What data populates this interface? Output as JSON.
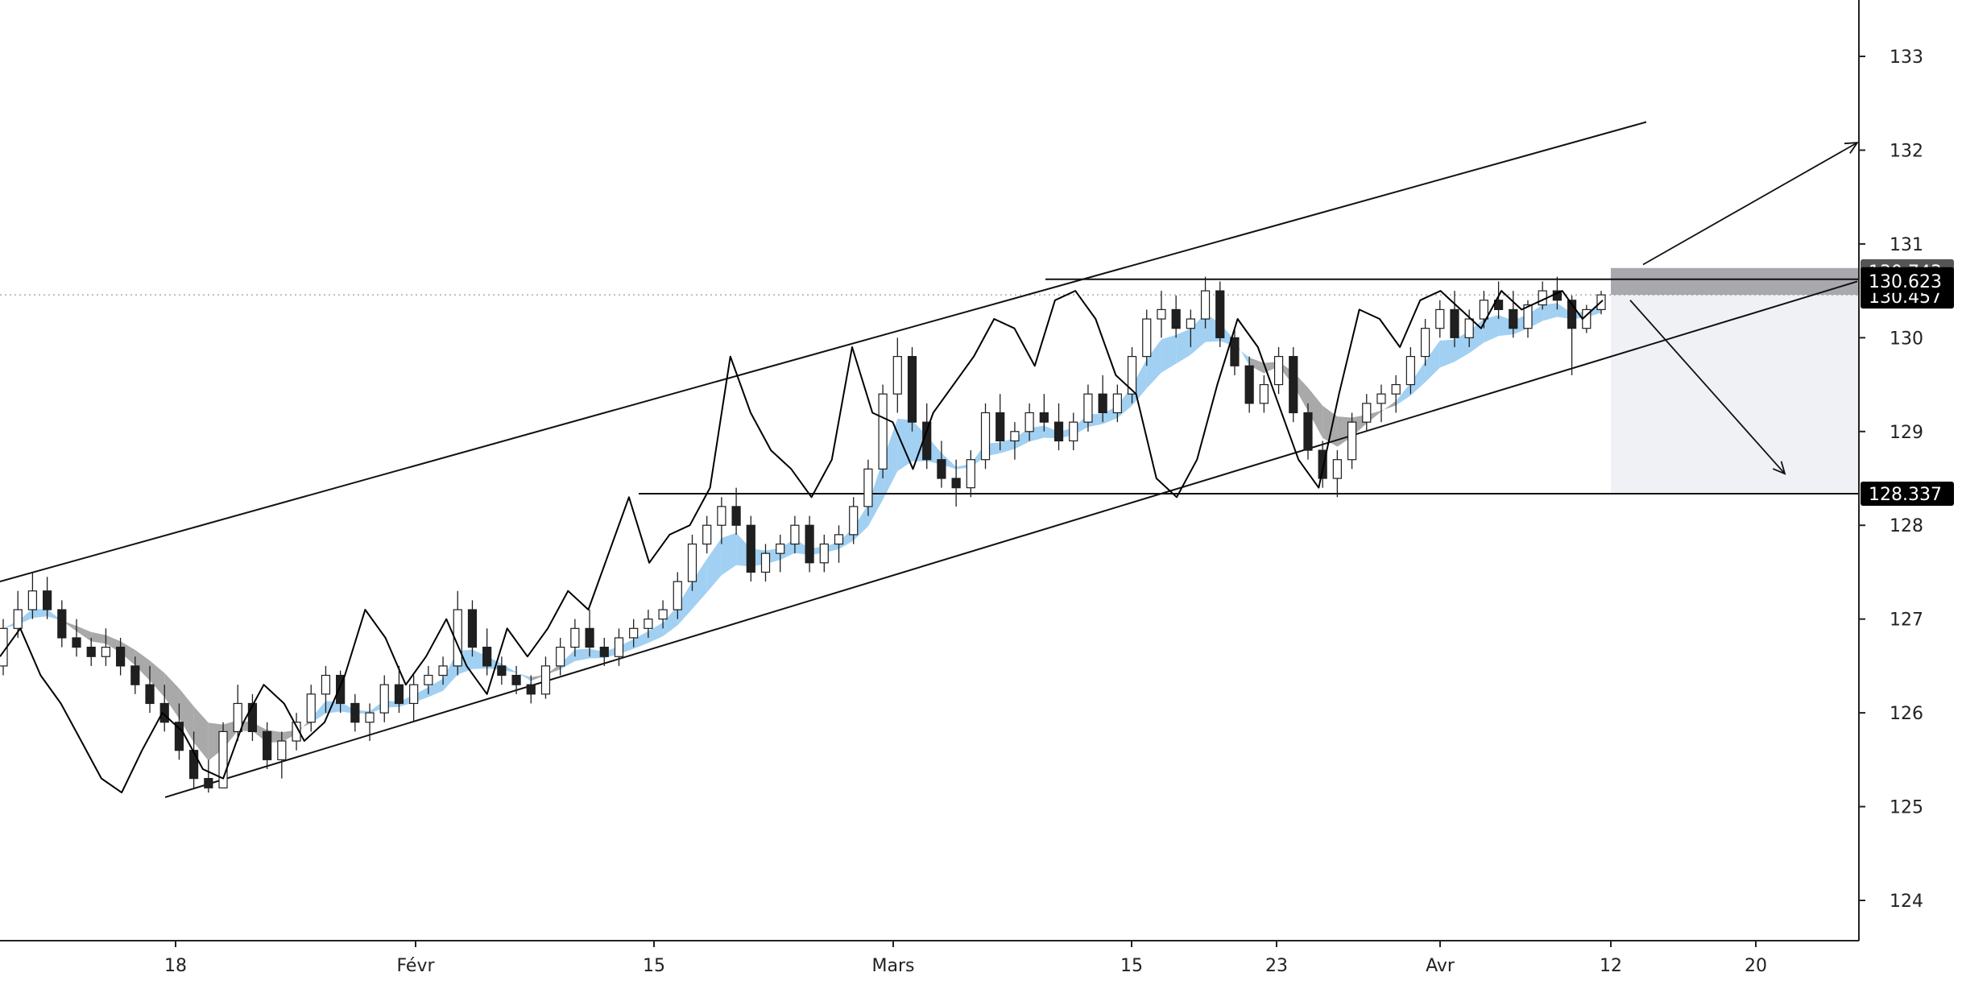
{
  "chart_data": {
    "type": "candlestick",
    "x_axis": {
      "type": "time",
      "tick_labels": [
        "18",
        "Févr",
        "15",
        "Mars",
        "15",
        "23",
        "Avr",
        "12",
        "20"
      ]
    },
    "y_axis": {
      "position": "right",
      "range": [
        123.6,
        133.6
      ],
      "ticks": [
        124,
        125,
        126,
        127,
        128,
        129,
        130,
        131,
        132,
        133
      ]
    },
    "price_labels": [
      {
        "value": 130.743,
        "text": "130.743",
        "style": "dark-gray"
      },
      {
        "value": 130.623,
        "text": "130.623",
        "style": "black"
      },
      {
        "value": 130.457,
        "text": "130.457",
        "style": "black"
      },
      {
        "value": 128.337,
        "text": "128.337",
        "style": "black"
      }
    ],
    "current_price": 130.457,
    "colors": {
      "candle": "#1f1f1f",
      "baseline_fill": "#90c8f0",
      "baseline_fill_dark": "#8c8c8c",
      "trade_zone_stop": "#a9a9ad",
      "trade_zone_target": "#eceef2"
    },
    "series": [
      {
        "kind": "candles",
        "ohlc": [
          [
            126.5,
            127.0,
            126.4,
            126.9
          ],
          [
            126.9,
            127.3,
            126.8,
            127.1
          ],
          [
            127.1,
            127.5,
            127.0,
            127.3
          ],
          [
            127.3,
            127.45,
            127.0,
            127.1
          ],
          [
            127.1,
            127.2,
            126.7,
            126.8
          ],
          [
            126.8,
            127.0,
            126.6,
            126.7
          ],
          [
            126.7,
            126.8,
            126.5,
            126.6
          ],
          [
            126.6,
            126.9,
            126.5,
            126.7
          ],
          [
            126.7,
            126.8,
            126.4,
            126.5
          ],
          [
            126.5,
            126.6,
            126.2,
            126.3
          ],
          [
            126.3,
            126.5,
            126.0,
            126.1
          ],
          [
            126.1,
            126.3,
            125.8,
            125.9
          ],
          [
            125.9,
            126.1,
            125.5,
            125.6
          ],
          [
            125.6,
            125.8,
            125.2,
            125.3
          ],
          [
            125.3,
            125.5,
            125.15,
            125.2
          ],
          [
            125.2,
            125.9,
            125.2,
            125.8
          ],
          [
            125.8,
            126.3,
            125.7,
            126.1
          ],
          [
            126.1,
            126.2,
            125.7,
            125.8
          ],
          [
            125.8,
            125.9,
            125.4,
            125.5
          ],
          [
            125.5,
            125.8,
            125.3,
            125.7
          ],
          [
            125.7,
            126.0,
            125.6,
            125.9
          ],
          [
            125.9,
            126.3,
            125.8,
            126.2
          ],
          [
            126.2,
            126.5,
            126.0,
            126.4
          ],
          [
            126.4,
            126.45,
            126.0,
            126.1
          ],
          [
            126.1,
            126.2,
            125.8,
            125.9
          ],
          [
            125.9,
            126.1,
            125.7,
            126.0
          ],
          [
            126.0,
            126.4,
            125.9,
            126.3
          ],
          [
            126.3,
            126.5,
            126.0,
            126.1
          ],
          [
            126.1,
            126.4,
            125.9,
            126.3
          ],
          [
            126.3,
            126.5,
            126.2,
            126.4
          ],
          [
            126.4,
            126.6,
            126.3,
            126.5
          ],
          [
            126.5,
            127.3,
            126.4,
            127.1
          ],
          [
            127.1,
            127.2,
            126.6,
            126.7
          ],
          [
            126.7,
            126.9,
            126.4,
            126.5
          ],
          [
            126.5,
            126.6,
            126.3,
            126.4
          ],
          [
            126.4,
            126.5,
            126.2,
            126.3
          ],
          [
            126.3,
            126.4,
            126.1,
            126.2
          ],
          [
            126.2,
            126.6,
            126.15,
            126.5
          ],
          [
            126.5,
            126.8,
            126.4,
            126.7
          ],
          [
            126.7,
            127.0,
            126.6,
            126.9
          ],
          [
            126.9,
            127.1,
            126.6,
            126.7
          ],
          [
            126.7,
            126.8,
            126.5,
            126.6
          ],
          [
            126.6,
            126.9,
            126.5,
            126.8
          ],
          [
            126.8,
            127.0,
            126.7,
            126.9
          ],
          [
            126.9,
            127.1,
            126.8,
            127.0
          ],
          [
            127.0,
            127.2,
            126.9,
            127.1
          ],
          [
            127.1,
            127.5,
            127.0,
            127.4
          ],
          [
            127.4,
            127.9,
            127.3,
            127.8
          ],
          [
            127.8,
            128.1,
            127.7,
            128.0
          ],
          [
            128.0,
            128.3,
            127.8,
            128.2
          ],
          [
            128.2,
            128.4,
            127.9,
            128.0
          ],
          [
            128.0,
            128.1,
            127.4,
            127.5
          ],
          [
            127.5,
            127.8,
            127.4,
            127.7
          ],
          [
            127.7,
            127.9,
            127.5,
            127.8
          ],
          [
            127.8,
            128.1,
            127.7,
            128.0
          ],
          [
            128.0,
            128.1,
            127.5,
            127.6
          ],
          [
            127.6,
            127.9,
            127.5,
            127.8
          ],
          [
            127.8,
            128.0,
            127.6,
            127.9
          ],
          [
            127.9,
            128.3,
            127.8,
            128.2
          ],
          [
            128.2,
            128.7,
            128.1,
            128.6
          ],
          [
            128.6,
            129.5,
            128.5,
            129.4
          ],
          [
            129.4,
            130.0,
            129.2,
            129.8
          ],
          [
            129.8,
            129.9,
            129.0,
            129.1
          ],
          [
            129.1,
            129.3,
            128.6,
            128.7
          ],
          [
            128.7,
            128.9,
            128.4,
            128.5
          ],
          [
            128.5,
            128.7,
            128.2,
            128.4
          ],
          [
            128.4,
            128.8,
            128.3,
            128.7
          ],
          [
            128.7,
            129.3,
            128.6,
            129.2
          ],
          [
            129.2,
            129.4,
            128.8,
            128.9
          ],
          [
            128.9,
            129.1,
            128.7,
            129.0
          ],
          [
            129.0,
            129.3,
            128.9,
            129.2
          ],
          [
            129.2,
            129.4,
            129.0,
            129.1
          ],
          [
            129.1,
            129.3,
            128.8,
            128.9
          ],
          [
            128.9,
            129.2,
            128.8,
            129.1
          ],
          [
            129.1,
            129.5,
            129.0,
            129.4
          ],
          [
            129.4,
            129.6,
            129.1,
            129.2
          ],
          [
            129.2,
            129.5,
            129.1,
            129.4
          ],
          [
            129.4,
            129.9,
            129.3,
            129.8
          ],
          [
            129.8,
            130.3,
            129.7,
            130.2
          ],
          [
            130.2,
            130.5,
            130.0,
            130.3
          ],
          [
            130.3,
            130.45,
            130.0,
            130.1
          ],
          [
            130.1,
            130.3,
            129.9,
            130.2
          ],
          [
            130.2,
            130.65,
            130.1,
            130.5
          ],
          [
            130.5,
            130.6,
            129.9,
            130.0
          ],
          [
            130.0,
            130.1,
            129.6,
            129.7
          ],
          [
            129.7,
            129.8,
            129.2,
            129.3
          ],
          [
            129.3,
            129.6,
            129.2,
            129.5
          ],
          [
            129.5,
            129.9,
            129.4,
            129.8
          ],
          [
            129.8,
            129.9,
            129.1,
            129.2
          ],
          [
            129.2,
            129.3,
            128.7,
            128.8
          ],
          [
            128.8,
            128.9,
            128.4,
            128.5
          ],
          [
            128.5,
            128.8,
            128.3,
            128.7
          ],
          [
            128.7,
            129.2,
            128.6,
            129.1
          ],
          [
            129.1,
            129.4,
            129.0,
            129.3
          ],
          [
            129.3,
            129.5,
            129.1,
            129.4
          ],
          [
            129.4,
            129.6,
            129.2,
            129.5
          ],
          [
            129.5,
            129.9,
            129.4,
            129.8
          ],
          [
            129.8,
            130.2,
            129.7,
            130.1
          ],
          [
            130.1,
            130.4,
            130.0,
            130.3
          ],
          [
            130.3,
            130.5,
            129.9,
            130.0
          ],
          [
            130.0,
            130.3,
            129.9,
            130.2
          ],
          [
            130.2,
            130.5,
            130.1,
            130.4
          ],
          [
            130.4,
            130.6,
            130.2,
            130.3
          ],
          [
            130.3,
            130.5,
            130.0,
            130.1
          ],
          [
            130.1,
            130.4,
            130.0,
            130.35
          ],
          [
            130.35,
            130.6,
            130.3,
            130.5
          ],
          [
            130.5,
            130.65,
            130.3,
            130.4
          ],
          [
            130.4,
            130.45,
            129.6,
            130.1
          ],
          [
            130.1,
            130.35,
            130.05,
            130.3
          ],
          [
            130.3,
            130.5,
            130.25,
            130.457
          ]
        ]
      },
      {
        "kind": "oscillator_line",
        "values": [
          126.6,
          126.9,
          126.4,
          126.1,
          125.7,
          125.3,
          125.15,
          125.6,
          126.0,
          125.8,
          125.4,
          125.3,
          125.9,
          126.3,
          126.1,
          125.7,
          125.9,
          126.4,
          127.1,
          126.8,
          126.3,
          126.6,
          127.0,
          126.5,
          126.2,
          126.9,
          126.6,
          126.9,
          127.3,
          127.1,
          127.7,
          128.3,
          127.6,
          127.9,
          128.0,
          128.4,
          129.8,
          129.2,
          128.8,
          128.6,
          128.3,
          128.7,
          129.9,
          129.2,
          129.1,
          128.6,
          129.2,
          129.5,
          129.8,
          130.2,
          130.1,
          129.7,
          130.4,
          130.5,
          130.2,
          129.6,
          129.4,
          128.5,
          128.3,
          128.7,
          129.5,
          130.2,
          129.9,
          129.3,
          128.7,
          128.4,
          129.4,
          130.3,
          130.2,
          129.9,
          130.4,
          130.5,
          130.3,
          130.1,
          130.5,
          130.3,
          130.4,
          130.5,
          130.2,
          130.4
        ]
      }
    ],
    "trendlines": [
      {
        "name": "upper-channel",
        "from": [
          0,
          127.4
        ],
        "to": [
          1,
          132.3
        ]
      },
      {
        "name": "lower-channel",
        "from": [
          0,
          125.1
        ],
        "to": [
          1,
          130.6
        ]
      },
      {
        "name": "resistance",
        "value": 130.623
      },
      {
        "name": "support",
        "value": 128.337
      }
    ],
    "projection": {
      "direction": "down",
      "entry": 130.457,
      "stop": 130.743,
      "target": 128.337
    }
  }
}
